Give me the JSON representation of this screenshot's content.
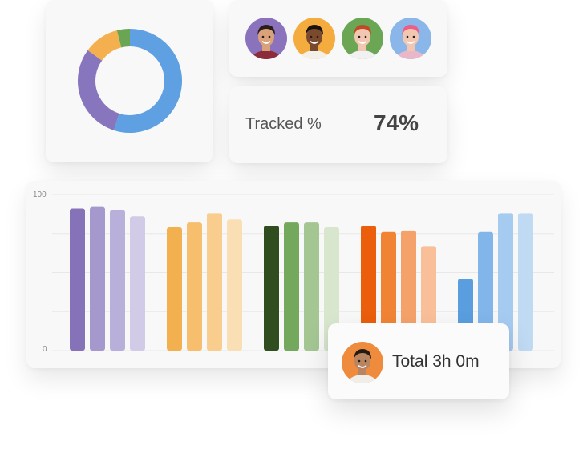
{
  "donut": {
    "segments": [
      {
        "value": 55,
        "color": "#5ea0e2"
      },
      {
        "value": 30,
        "color": "#8775bd"
      },
      {
        "value": 11,
        "color": "#f4b04e"
      },
      {
        "value": 4,
        "color": "#6aa554"
      }
    ]
  },
  "avatars": [
    {
      "bg": "#8a72bd",
      "skin": "#d9a27a",
      "hair": "#2b1d17",
      "shirt": "#8c2c3a"
    },
    {
      "bg": "#f5ac3e",
      "skin": "#7a4a2e",
      "hair": "#1a1410",
      "shirt": "#f3f0ea"
    },
    {
      "bg": "#6aa653",
      "skin": "#f2c7b1",
      "hair": "#c04a27",
      "shirt": "#f1f1f1"
    },
    {
      "bg": "#8ab6ea",
      "skin": "#f1c7b2",
      "hair": "#ec5e87",
      "shirt": "#e9b8c8"
    }
  ],
  "tracked": {
    "label": "Tracked %",
    "value": "74%"
  },
  "chart_data": {
    "type": "bar",
    "ylim": [
      0,
      100
    ],
    "y_ticks": [
      "100",
      "0"
    ],
    "grid": true,
    "groups": [
      {
        "values": [
          91,
          92,
          90,
          86
        ],
        "colors": [
          "#8572b8",
          "#a498cc",
          "#b8b0da",
          "#d2cbe8"
        ]
      },
      {
        "values": [
          79,
          82,
          88,
          84
        ],
        "colors": [
          "#f3b04e",
          "#f6be6d",
          "#f8cd8d",
          "#fadfb5"
        ]
      },
      {
        "values": [
          80,
          82,
          82,
          79
        ],
        "colors": [
          "#2f4d1f",
          "#74a85d",
          "#a3c693",
          "#d7e6cd"
        ]
      },
      {
        "values": [
          80,
          76,
          77,
          67
        ],
        "colors": [
          "#ea5e0c",
          "#f18434",
          "#f5a26a",
          "#f9bf98"
        ]
      },
      {
        "values": [
          46,
          76,
          88,
          88
        ],
        "colors": [
          "#5a9edf",
          "#82b5ea",
          "#a6cbf0",
          "#c0daf3"
        ]
      }
    ]
  },
  "total": {
    "text": "Total 3h 0m",
    "avatar": {
      "bg": "#ef8b3d",
      "skin": "#b88462",
      "hair": "#241a14",
      "shirt": "#f0eee9"
    }
  }
}
